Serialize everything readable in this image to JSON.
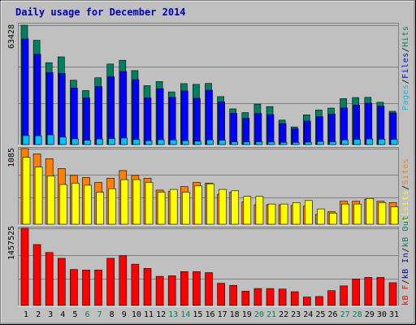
{
  "title": "Daily usage for December 2014",
  "colors": {
    "background": "#c0c0c0",
    "pages": "#00c0ff",
    "files": "#0000ff",
    "hits": "#008060",
    "visits": "#ffff00",
    "sites": "#ff8000",
    "kbytes": "#ff0000",
    "kb_in": "#0000c0",
    "kb_out": "#008060",
    "weekday_label": "#000000",
    "weekend_label": "#008060"
  },
  "legends": {
    "top": [
      {
        "text": "Pages",
        "color": "#00c0ff"
      },
      {
        "text": "/",
        "color": "#000000"
      },
      {
        "text": "Files",
        "color": "#0000ff"
      },
      {
        "text": "/",
        "color": "#000000"
      },
      {
        "text": "Hits",
        "color": "#008060"
      }
    ],
    "middle": [
      {
        "text": "Visits",
        "color": "#ffff00"
      },
      {
        "text": "/",
        "color": "#000000"
      },
      {
        "text": "Sites",
        "color": "#ff8000"
      }
    ],
    "bottom": [
      {
        "text": "kB F",
        "color": "#ff0000"
      },
      {
        "text": "/",
        "color": "#000000"
      },
      {
        "text": "kB In",
        "color": "#0000c0"
      },
      {
        "text": "/",
        "color": "#000000"
      },
      {
        "text": "kB Out",
        "color": "#008060"
      }
    ]
  },
  "chart_data": [
    {
      "type": "bar",
      "title": "Daily usage for December 2014",
      "ymax_label": "63428",
      "ylim": [
        0,
        63428
      ],
      "grid": true,
      "legend_placement": "right",
      "categories": [
        "1",
        "2",
        "3",
        "4",
        "5",
        "6",
        "7",
        "8",
        "9",
        "10",
        "11",
        "12",
        "13",
        "14",
        "15",
        "16",
        "17",
        "18",
        "19",
        "20",
        "21",
        "22",
        "23",
        "24",
        "25",
        "26",
        "27",
        "28",
        "29",
        "30",
        "31"
      ],
      "weekend_days": [
        "6",
        "7",
        "13",
        "14",
        "20",
        "21",
        "27",
        "28"
      ],
      "series": [
        {
          "name": "Hits",
          "values": [
            63428,
            55400,
            43500,
            46600,
            34200,
            28700,
            35500,
            42800,
            44800,
            39300,
            31300,
            33500,
            28000,
            32400,
            32000,
            32500,
            25500,
            19000,
            17000,
            21500,
            20200,
            13000,
            9400,
            15800,
            18400,
            19400,
            24400,
            25000,
            25100,
            22500,
            17700
          ]
        },
        {
          "name": "Files",
          "values": [
            56100,
            48000,
            38300,
            37800,
            30000,
            24800,
            30800,
            36100,
            38800,
            34500,
            24800,
            29700,
            25100,
            28500,
            24600,
            28900,
            22700,
            16600,
            14000,
            16500,
            15900,
            11200,
            8400,
            12500,
            14800,
            16200,
            19500,
            21000,
            22000,
            20400,
            16800
          ]
        },
        {
          "name": "Pages",
          "values": [
            4800,
            4700,
            5200,
            4000,
            3100,
            2300,
            3000,
            3200,
            3500,
            2700,
            2100,
            2600,
            2500,
            2100,
            1800,
            2500,
            2300,
            1500,
            1400,
            1500,
            1400,
            1200,
            1200,
            1300,
            1700,
            1500,
            2500,
            2700,
            3000,
            2900,
            2800
          ]
        }
      ]
    },
    {
      "type": "bar",
      "ymax_label": "1085",
      "ylim": [
        0,
        1085
      ],
      "grid": true,
      "legend_placement": "right",
      "categories": [
        "1",
        "2",
        "3",
        "4",
        "5",
        "6",
        "7",
        "8",
        "9",
        "10",
        "11",
        "12",
        "13",
        "14",
        "15",
        "16",
        "17",
        "18",
        "19",
        "20",
        "21",
        "22",
        "23",
        "24",
        "25",
        "26",
        "27",
        "28",
        "29",
        "30",
        "31"
      ],
      "series": [
        {
          "name": "Sites",
          "values": [
            1085,
            1010,
            940,
            800,
            700,
            670,
            600,
            660,
            770,
            700,
            660,
            490,
            470,
            540,
            600,
            590,
            430,
            460,
            320,
            280,
            280,
            280,
            270,
            260,
            140,
            180,
            330,
            330,
            360,
            330,
            310
          ]
        },
        {
          "name": "Visits",
          "values": [
            960,
            820,
            690,
            570,
            590,
            560,
            460,
            510,
            640,
            640,
            600,
            460,
            500,
            460,
            550,
            580,
            500,
            480,
            400,
            400,
            290,
            290,
            310,
            340,
            220,
            160,
            290,
            290,
            370,
            310,
            250
          ]
        }
      ]
    },
    {
      "type": "bar",
      "ymax_label": "1457525",
      "ylim": [
        0,
        1457525
      ],
      "grid": true,
      "legend_placement": "right",
      "categories": [
        "1",
        "2",
        "3",
        "4",
        "5",
        "6",
        "7",
        "8",
        "9",
        "10",
        "11",
        "12",
        "13",
        "14",
        "15",
        "16",
        "17",
        "18",
        "19",
        "20",
        "21",
        "22",
        "23",
        "24",
        "25",
        "26",
        "27",
        "28",
        "29",
        "30",
        "31"
      ],
      "series": [
        {
          "name": "kB F",
          "values": [
            1457525,
            1150000,
            1000000,
            890000,
            680000,
            670000,
            670000,
            890000,
            940000,
            780000,
            700000,
            550000,
            560000,
            640000,
            640000,
            620000,
            420000,
            380000,
            270000,
            320000,
            320000,
            310000,
            260000,
            160000,
            170000,
            280000,
            370000,
            500000,
            530000,
            530000,
            430000
          ]
        },
        {
          "name": "kB In",
          "values": [
            0,
            0,
            0,
            0,
            0,
            0,
            0,
            0,
            0,
            0,
            0,
            0,
            0,
            0,
            0,
            0,
            0,
            0,
            0,
            0,
            0,
            0,
            0,
            0,
            0,
            0,
            0,
            0,
            0,
            0,
            0
          ]
        },
        {
          "name": "kB Out",
          "values": [
            0,
            0,
            0,
            0,
            0,
            0,
            0,
            0,
            0,
            0,
            0,
            0,
            0,
            0,
            0,
            0,
            0,
            0,
            0,
            0,
            0,
            0,
            0,
            0,
            0,
            0,
            0,
            0,
            0,
            0,
            0
          ]
        }
      ]
    }
  ]
}
